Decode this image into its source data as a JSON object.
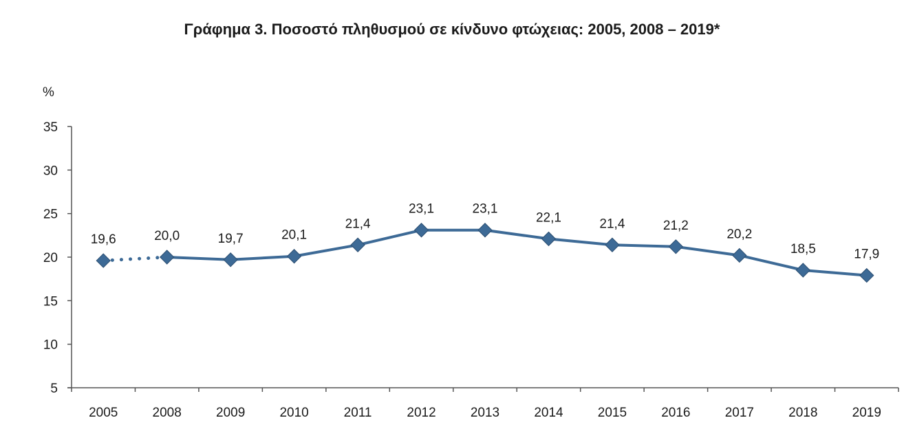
{
  "chart_data": {
    "type": "line",
    "title": "Γράφημα 3. Ποσοστό πληθυσμού σε κίνδυνο φτώχειας: 2005, 2008 – 2019*",
    "xlabel": "",
    "ylabel": "%",
    "ylim": [
      5,
      35
    ],
    "yticks": [
      5,
      10,
      15,
      20,
      25,
      30,
      35
    ],
    "grid": false,
    "legend": "none",
    "categories": [
      "2005",
      "2008",
      "2009",
      "2010",
      "2011",
      "2012",
      "2013",
      "2014",
      "2015",
      "2016",
      "2017",
      "2018",
      "2019"
    ],
    "series": [
      {
        "name": "Ποσοστό πληθυσμού σε κίνδυνο φτώχειας",
        "values": [
          19.6,
          20.0,
          19.7,
          20.1,
          21.4,
          23.1,
          23.1,
          22.1,
          21.4,
          21.2,
          20.2,
          18.5,
          17.9
        ],
        "labels": [
          "19,6",
          "20,0",
          "19,7",
          "20,1",
          "21,4",
          "23,1",
          "23,1",
          "22,1",
          "21,4",
          "21,2",
          "20,2",
          "18,5",
          "17,9"
        ],
        "color": "#3d6a96",
        "marker": "diamond",
        "dotted_segments": [
          [
            0,
            1
          ]
        ]
      }
    ]
  }
}
